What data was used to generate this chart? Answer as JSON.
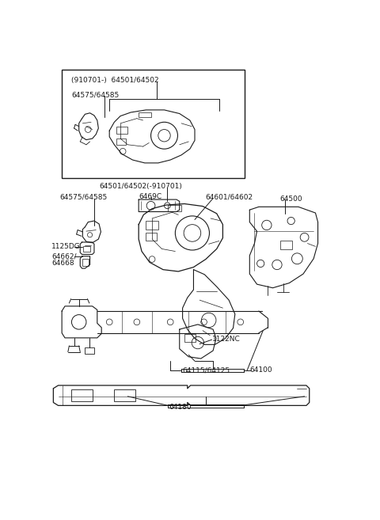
{
  "bg_color": "#ffffff",
  "line_color": "#1a1a1a",
  "figsize": [
    4.8,
    6.57
  ],
  "dpi": 100,
  "labels": {
    "box_label1": "(910701-)  64501/64502",
    "box_label2": "64575/64585",
    "center_label": "64501/64502(-910701)",
    "label_64575": "64575/64585",
    "label_64690": "6469C",
    "label_64601": "64601/64602",
    "label_64500": "64500",
    "label_11250": "1125DG",
    "label_64662a": "64662/",
    "label_64662b": "64668",
    "label_1122": "1122NC",
    "label_64115": "64115/64125",
    "label_64100": "64100",
    "label_64180": "64180"
  }
}
